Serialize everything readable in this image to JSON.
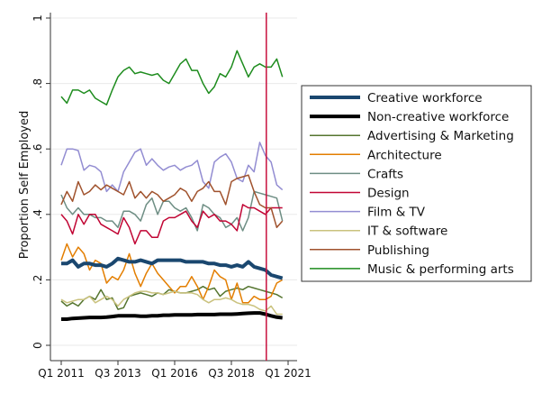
{
  "chart_data": {
    "type": "line",
    "title": "",
    "xlabel": "",
    "ylabel": "Proportion Self Employed",
    "ylim": [
      0,
      1
    ],
    "yticks": [
      0,
      0.2,
      0.4,
      0.6,
      0.8,
      1
    ],
    "ytick_labels": [
      "0",
      ".2",
      ".4",
      ".6",
      ".8",
      "1"
    ],
    "x_start": "Q1 2011",
    "x_end": "Q4 2020",
    "n_quarters": 40,
    "xticks": [
      0,
      10,
      20,
      30,
      40
    ],
    "xtick_labels": [
      "Q1 2011",
      "Q3 2013",
      "Q1 2016",
      "Q3 2018",
      "Q1 2021"
    ],
    "grid": true,
    "legend_position": "right",
    "vline": {
      "quarter_index": 36,
      "label": "Q1 2020",
      "color": "#c8103e"
    },
    "series": [
      {
        "name": "Creative workforce",
        "color": "#1a476f",
        "width": 4,
        "values": [
          0.25,
          0.25,
          0.26,
          0.24,
          0.25,
          0.25,
          0.245,
          0.245,
          0.24,
          0.25,
          0.265,
          0.26,
          0.255,
          0.255,
          0.26,
          0.255,
          0.25,
          0.26,
          0.26,
          0.26,
          0.26,
          0.26,
          0.255,
          0.255,
          0.255,
          0.255,
          0.25,
          0.25,
          0.245,
          0.245,
          0.24,
          0.245,
          0.24,
          0.255,
          0.24,
          0.235,
          0.23,
          0.215,
          0.21,
          0.205
        ]
      },
      {
        "name": "Non-creative workforce",
        "color": "#000000",
        "width": 4,
        "values": [
          0.08,
          0.08,
          0.082,
          0.083,
          0.084,
          0.085,
          0.085,
          0.085,
          0.086,
          0.088,
          0.09,
          0.09,
          0.09,
          0.09,
          0.089,
          0.089,
          0.09,
          0.09,
          0.092,
          0.092,
          0.093,
          0.093,
          0.093,
          0.093,
          0.094,
          0.094,
          0.094,
          0.094,
          0.095,
          0.095,
          0.095,
          0.096,
          0.097,
          0.098,
          0.099,
          0.099,
          0.095,
          0.09,
          0.086,
          0.084
        ]
      },
      {
        "name": "Advertising & Marketing",
        "color": "#55752f",
        "width": 1.5,
        "values": [
          0.135,
          0.12,
          0.13,
          0.12,
          0.14,
          0.15,
          0.14,
          0.17,
          0.14,
          0.145,
          0.11,
          0.115,
          0.15,
          0.155,
          0.16,
          0.155,
          0.15,
          0.16,
          0.155,
          0.17,
          0.165,
          0.16,
          0.16,
          0.165,
          0.17,
          0.18,
          0.17,
          0.175,
          0.15,
          0.165,
          0.17,
          0.175,
          0.17,
          0.18,
          0.175,
          0.17,
          0.165,
          0.16,
          0.155,
          0.145
        ]
      },
      {
        "name": "Architecture",
        "color": "#e37e00",
        "width": 1.5,
        "values": [
          0.26,
          0.31,
          0.27,
          0.3,
          0.28,
          0.23,
          0.26,
          0.25,
          0.19,
          0.21,
          0.2,
          0.23,
          0.28,
          0.22,
          0.18,
          0.22,
          0.25,
          0.22,
          0.2,
          0.18,
          0.16,
          0.18,
          0.18,
          0.21,
          0.18,
          0.14,
          0.18,
          0.23,
          0.21,
          0.2,
          0.14,
          0.19,
          0.13,
          0.13,
          0.15,
          0.14,
          0.14,
          0.15,
          0.19,
          0.2
        ]
      },
      {
        "name": "Crafts",
        "color": "#6e8e84",
        "width": 1.5,
        "values": [
          0.46,
          0.42,
          0.4,
          0.42,
          0.4,
          0.4,
          0.39,
          0.39,
          0.38,
          0.38,
          0.36,
          0.41,
          0.41,
          0.4,
          0.38,
          0.43,
          0.45,
          0.4,
          0.44,
          0.44,
          0.42,
          0.41,
          0.42,
          0.39,
          0.35,
          0.43,
          0.42,
          0.4,
          0.39,
          0.36,
          0.37,
          0.39,
          0.35,
          0.39,
          0.47,
          0.465,
          0.46,
          0.455,
          0.45,
          0.38
        ]
      },
      {
        "name": "Design",
        "color": "#c10534",
        "width": 1.5,
        "values": [
          0.4,
          0.38,
          0.34,
          0.4,
          0.37,
          0.4,
          0.4,
          0.37,
          0.36,
          0.35,
          0.34,
          0.39,
          0.36,
          0.31,
          0.35,
          0.35,
          0.33,
          0.33,
          0.38,
          0.39,
          0.39,
          0.4,
          0.41,
          0.38,
          0.36,
          0.41,
          0.39,
          0.4,
          0.38,
          0.38,
          0.37,
          0.35,
          0.43,
          0.42,
          0.42,
          0.41,
          0.4,
          0.42,
          0.42,
          0.42
        ]
      },
      {
        "name": "Film & TV",
        "color": "#938dd2",
        "width": 1.5,
        "values": [
          0.55,
          0.6,
          0.6,
          0.595,
          0.535,
          0.55,
          0.545,
          0.53,
          0.47,
          0.49,
          0.47,
          0.53,
          0.56,
          0.59,
          0.6,
          0.55,
          0.57,
          0.55,
          0.535,
          0.545,
          0.55,
          0.535,
          0.545,
          0.55,
          0.565,
          0.5,
          0.48,
          0.56,
          0.575,
          0.585,
          0.56,
          0.51,
          0.5,
          0.55,
          0.53,
          0.62,
          0.58,
          0.56,
          0.49,
          0.475
        ]
      },
      {
        "name": "IT & software",
        "color": "#cac27e",
        "width": 1.5,
        "values": [
          0.14,
          0.13,
          0.135,
          0.14,
          0.14,
          0.15,
          0.13,
          0.14,
          0.15,
          0.14,
          0.12,
          0.14,
          0.15,
          0.16,
          0.165,
          0.165,
          0.16,
          0.16,
          0.155,
          0.16,
          0.165,
          0.16,
          0.16,
          0.16,
          0.155,
          0.14,
          0.13,
          0.14,
          0.14,
          0.145,
          0.14,
          0.13,
          0.125,
          0.125,
          0.12,
          0.11,
          0.105,
          0.12,
          0.095,
          0.095
        ]
      },
      {
        "name": "Publishing",
        "color": "#a0522d",
        "width": 1.5,
        "values": [
          0.43,
          0.47,
          0.44,
          0.5,
          0.46,
          0.47,
          0.49,
          0.475,
          0.49,
          0.48,
          0.47,
          0.46,
          0.5,
          0.45,
          0.47,
          0.45,
          0.47,
          0.46,
          0.44,
          0.45,
          0.46,
          0.48,
          0.47,
          0.44,
          0.47,
          0.48,
          0.5,
          0.47,
          0.47,
          0.43,
          0.5,
          0.51,
          0.515,
          0.52,
          0.47,
          0.43,
          0.42,
          0.42,
          0.36,
          0.38
        ]
      },
      {
        "name": "Music & performing arts",
        "color": "#1e8c1e",
        "width": 1.5,
        "values": [
          0.76,
          0.74,
          0.78,
          0.78,
          0.77,
          0.78,
          0.755,
          0.745,
          0.735,
          0.78,
          0.82,
          0.84,
          0.85,
          0.83,
          0.835,
          0.83,
          0.825,
          0.83,
          0.81,
          0.8,
          0.83,
          0.86,
          0.875,
          0.84,
          0.84,
          0.8,
          0.77,
          0.79,
          0.83,
          0.82,
          0.85,
          0.9,
          0.86,
          0.82,
          0.85,
          0.86,
          0.85,
          0.85,
          0.875,
          0.82
        ]
      }
    ]
  }
}
